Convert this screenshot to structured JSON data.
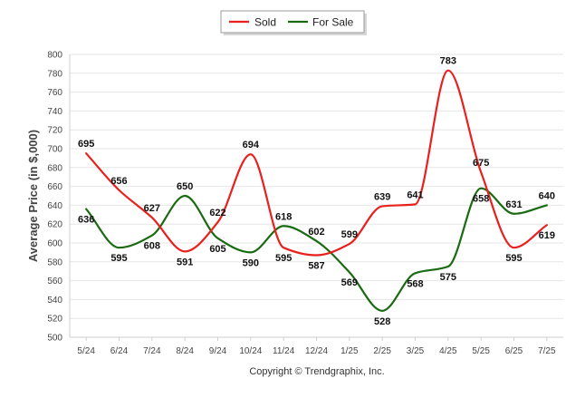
{
  "chart_data": {
    "type": "line",
    "categories": [
      "5/24",
      "6/24",
      "7/24",
      "8/24",
      "9/24",
      "10/24",
      "11/24",
      "12/24",
      "1/25",
      "2/25",
      "3/25",
      "4/25",
      "5/25",
      "6/25",
      "7/25"
    ],
    "series": [
      {
        "name": "Sold",
        "color": "#e8201e",
        "values": [
          695,
          656,
          627,
          591,
          622,
          694,
          595,
          587,
          599,
          639,
          641,
          783,
          675,
          595,
          619
        ]
      },
      {
        "name": "For Sale",
        "color": "#1a6a12",
        "values": [
          636,
          595,
          608,
          650,
          605,
          590,
          618,
          602,
          569,
          528,
          568,
          575,
          658,
          631,
          640
        ]
      }
    ],
    "ylabel": "Average Price (in $,000)",
    "ylim": [
      500,
      800
    ],
    "yticks": [
      500,
      520,
      540,
      560,
      580,
      600,
      620,
      640,
      660,
      680,
      700,
      720,
      740,
      760,
      780,
      800
    ],
    "grid": true,
    "legend_position": "top-center",
    "footer": "Copyright © Trendgraphix, Inc."
  }
}
